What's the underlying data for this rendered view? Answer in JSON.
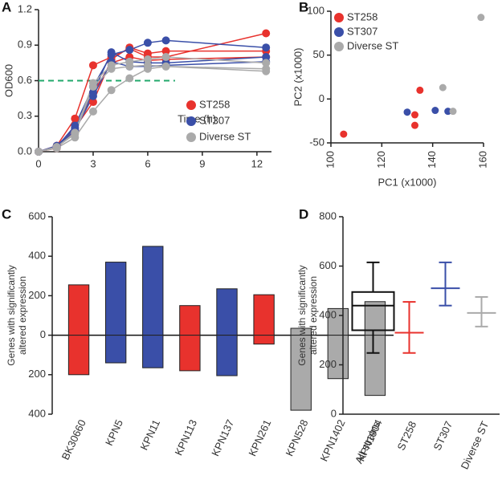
{
  "chart_data": [
    {
      "type": "line",
      "label": "A",
      "ylabel": "OD600",
      "xlabel": "Time (h)",
      "x": [
        0,
        1,
        2,
        3,
        4,
        5,
        6,
        7,
        12.5
      ],
      "xlim": [
        0,
        12.8
      ],
      "xticks": [
        0,
        3,
        6,
        9,
        12
      ],
      "ylim": [
        0,
        1.2
      ],
      "yticks": [
        {
          "value": 0,
          "label": "0.0"
        },
        0.3,
        0.6,
        0.9,
        1.2
      ],
      "reference_line": {
        "y": 0.6,
        "x": [
          0,
          7.5
        ],
        "color": "#22a86b"
      },
      "legend": "bottom-right",
      "series": [
        {
          "name": "ST258",
          "color": "#e8322d",
          "lines": [
            [
              0,
              0.05,
              0.28,
              0.73,
              0.8,
              0.87,
              0.8,
              0.8,
              1.0
            ],
            [
              0,
              0.04,
              0.2,
              0.42,
              0.78,
              0.88,
              0.83,
              0.85,
              0.85
            ],
            [
              0,
              0.03,
              0.18,
              0.5,
              0.75,
              0.8,
              0.77,
              0.78,
              0.8
            ]
          ]
        },
        {
          "name": "ST307",
          "color": "#3a4fa8",
          "lines": [
            [
              0,
              0.04,
              0.22,
              0.55,
              0.82,
              0.86,
              0.92,
              0.94,
              0.88
            ],
            [
              0,
              0.05,
              0.2,
              0.5,
              0.84,
              0.76,
              0.75,
              0.75,
              0.8
            ],
            [
              0,
              0.04,
              0.18,
              0.47,
              0.76,
              0.72,
              0.72,
              0.73,
              0.76
            ]
          ]
        },
        {
          "name": "Diverse ST",
          "color": "#aaaaaa",
          "lines": [
            [
              0,
              0.03,
              0.12,
              0.34,
              0.52,
              0.62,
              0.7,
              0.72,
              0.68
            ],
            [
              0,
              0.04,
              0.15,
              0.55,
              0.7,
              0.72,
              0.73,
              0.72,
              0.7
            ],
            [
              0,
              0.04,
              0.16,
              0.58,
              0.73,
              0.76,
              0.78,
              0.8,
              0.75
            ]
          ]
        }
      ]
    },
    {
      "type": "scatter",
      "label": "B",
      "xlabel": "PC1 (x1000)",
      "ylabel": "PC2 (x1000)",
      "xlim": [
        100,
        160
      ],
      "xticks": [
        100,
        120,
        140,
        160
      ],
      "ylim": [
        -50,
        100
      ],
      "yticks": [
        -50,
        0,
        50,
        100
      ],
      "legend": "top-left",
      "series": [
        {
          "name": "ST258",
          "color": "#e8322d",
          "x": [
            105,
            133,
            133,
            135
          ],
          "values": [
            -40,
            -30,
            -18,
            10
          ]
        },
        {
          "name": "ST307",
          "color": "#3a4fa8",
          "x": [
            130,
            141,
            146
          ],
          "values": [
            -15,
            -13,
            -14
          ]
        },
        {
          "name": "Diverse ST",
          "color": "#aaaaaa",
          "x": [
            144,
            148,
            159
          ],
          "values": [
            13,
            -14,
            93
          ]
        }
      ]
    },
    {
      "type": "floating-bar",
      "label": "C",
      "ylabel": [
        "Genes with significantly",
        "altered expression"
      ],
      "ylim": [
        -400,
        600
      ],
      "yticks": [
        {
          "value": -400,
          "label": "400"
        },
        {
          "value": -200,
          "label": "200"
        },
        0,
        200,
        400,
        600
      ],
      "categories": [
        "BK30660",
        "KPN5",
        "KPN11",
        "KPN113",
        "KPN137",
        "KPN261",
        "KPN528",
        "KPN1402",
        "KPN1904"
      ],
      "up": [
        255,
        370,
        450,
        150,
        235,
        205,
        35,
        135,
        170
      ],
      "down": [
        -200,
        -140,
        -165,
        -180,
        -205,
        -45,
        -380,
        -220,
        -305
      ],
      "colors": [
        "#e8322d",
        "#3a4fa8",
        "#3a4fa8",
        "#e8322d",
        "#3a4fa8",
        "#e8322d",
        "#aaaaaa",
        "#aaaaaa",
        "#aaaaaa"
      ]
    },
    {
      "type": "box",
      "label": "D",
      "ylabel": [
        "Genes with significantly",
        "altered expression"
      ],
      "ylim": [
        0,
        800
      ],
      "yticks": [
        0,
        200,
        400,
        600,
        800
      ],
      "categories": [
        "All strains",
        "ST258",
        "ST307",
        "Diverse ST"
      ],
      "colors": [
        "#111111",
        "#e8322d",
        "#3a4fa8",
        "#aaaaaa"
      ],
      "stats": [
        {
          "min": 248,
          "q1": 340,
          "median": 440,
          "q3": 495,
          "max": 615
        },
        {
          "min": 248,
          "center": 330,
          "max": 455
        },
        {
          "min": 440,
          "center": 510,
          "max": 615
        },
        {
          "min": 355,
          "center": 410,
          "max": 475
        }
      ]
    }
  ]
}
